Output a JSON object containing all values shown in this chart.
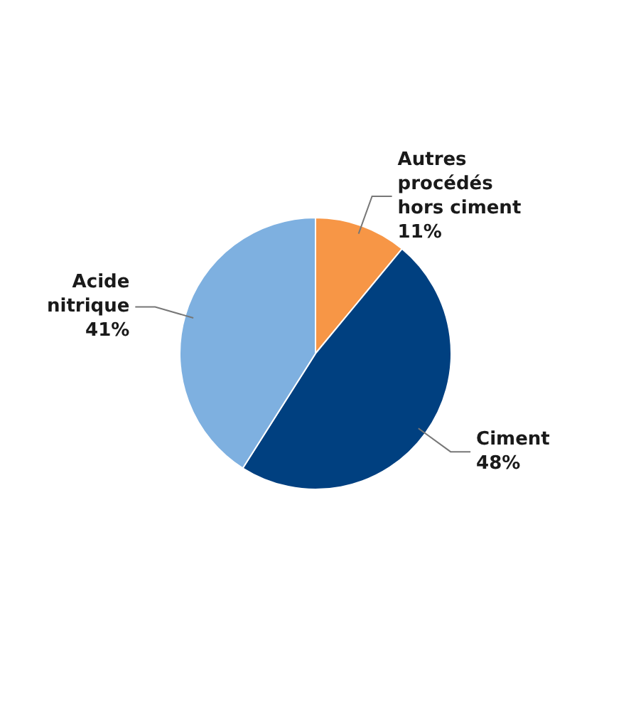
{
  "chart_data": {
    "type": "pie",
    "categories": [
      "Autres procédés hors ciment",
      "Ciment",
      "Acide nitrique"
    ],
    "values": [
      11,
      48,
      41
    ],
    "colors": [
      "#f79646",
      "#004080",
      "#7eb0e0"
    ],
    "value_labels": [
      "11%",
      "48%",
      "41%"
    ],
    "legend": false
  }
}
